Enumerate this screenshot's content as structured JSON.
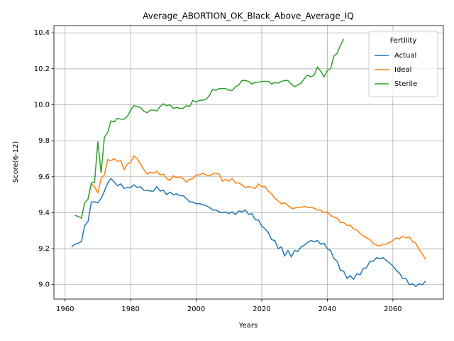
{
  "chart_data": {
    "type": "line",
    "title": "Average_ABORTION_OK_Black_Above_Average_IQ",
    "xlabel": "Years",
    "ylabel": "Score(6-12)",
    "x": [
      1962,
      1963,
      1964,
      1965,
      1966,
      1967,
      1968,
      1969,
      1970,
      1971,
      1972,
      1973,
      1974,
      1975,
      1976,
      1977,
      1978,
      1979,
      1980,
      1981,
      1982,
      1983,
      1984,
      1985,
      1986,
      1987,
      1988,
      1989,
      1990,
      1991,
      1992,
      1993,
      1994,
      1995,
      1996,
      1997,
      1998,
      1999,
      2000,
      2001,
      2002,
      2003,
      2004,
      2005,
      2006,
      2007,
      2008,
      2009,
      2010,
      2011,
      2012,
      2013,
      2014,
      2015,
      2016,
      2017,
      2018,
      2019,
      2020,
      2021,
      2022,
      2023,
      2024,
      2025,
      2026,
      2027,
      2028,
      2029,
      2030,
      2031,
      2032,
      2033,
      2034,
      2035,
      2036,
      2037,
      2038,
      2039,
      2040,
      2041,
      2042,
      2043,
      2044,
      2045,
      2046,
      2047,
      2048,
      2049,
      2050,
      2051,
      2052,
      2053,
      2054,
      2055,
      2056,
      2057,
      2058,
      2059,
      2060,
      2061,
      2062,
      2063,
      2064,
      2065,
      2066,
      2067,
      2068,
      2069,
      2070
    ],
    "series": [
      {
        "name": "Actual",
        "color": "#1f77b4",
        "values": [
          9.21,
          9.225,
          9.23,
          9.24,
          9.33,
          9.35,
          9.46,
          9.46,
          9.455,
          9.48,
          9.52,
          9.565,
          9.59,
          9.57,
          9.55,
          9.56,
          9.535,
          9.54,
          9.54,
          9.555,
          9.54,
          9.545,
          9.525,
          9.525,
          9.52,
          9.52,
          9.545,
          9.52,
          9.525,
          9.5,
          9.515,
          9.5,
          9.505,
          9.495,
          9.495,
          9.48,
          9.46,
          9.46,
          9.45,
          9.45,
          9.445,
          9.44,
          9.43,
          9.415,
          9.415,
          9.405,
          9.4,
          9.405,
          9.395,
          9.405,
          9.39,
          9.41,
          9.405,
          9.415,
          9.39,
          9.395,
          9.36,
          9.36,
          9.325,
          9.31,
          9.29,
          9.25,
          9.245,
          9.2,
          9.21,
          9.16,
          9.19,
          9.155,
          9.19,
          9.185,
          9.21,
          9.22,
          9.235,
          9.245,
          9.24,
          9.245,
          9.225,
          9.23,
          9.2,
          9.19,
          9.145,
          9.13,
          9.08,
          9.075,
          9.035,
          9.05,
          9.03,
          9.06,
          9.055,
          9.09,
          9.095,
          9.13,
          9.13,
          9.15,
          9.145,
          9.15,
          9.135,
          9.12,
          9.105,
          9.08,
          9.065,
          9.035,
          9.035,
          9.0,
          9.005,
          8.99,
          9.005,
          9.0,
          9.02
        ]
      },
      {
        "name": "Ideal",
        "color": "#ff7f0e",
        "values": [
          null,
          null,
          null,
          null,
          null,
          9.48,
          9.56,
          9.545,
          9.51,
          9.59,
          9.61,
          9.695,
          9.69,
          9.7,
          9.685,
          9.69,
          9.64,
          9.67,
          9.68,
          9.715,
          9.7,
          9.67,
          9.64,
          9.615,
          9.625,
          9.62,
          9.63,
          9.61,
          9.615,
          9.59,
          9.58,
          9.605,
          9.595,
          9.6,
          9.59,
          9.57,
          9.585,
          9.59,
          9.61,
          9.61,
          9.62,
          9.61,
          9.605,
          9.615,
          9.62,
          9.615,
          9.575,
          9.585,
          9.575,
          9.59,
          9.565,
          9.565,
          9.555,
          9.54,
          9.545,
          9.54,
          9.535,
          9.56,
          9.545,
          9.545,
          9.52,
          9.505,
          9.48,
          9.465,
          9.45,
          9.455,
          9.44,
          9.425,
          9.425,
          9.43,
          9.43,
          9.435,
          9.43,
          9.43,
          9.425,
          9.415,
          9.415,
          9.4,
          9.405,
          9.385,
          9.375,
          9.37,
          9.345,
          9.345,
          9.33,
          9.33,
          9.31,
          9.305,
          9.285,
          9.27,
          9.26,
          9.25,
          9.23,
          9.22,
          9.215,
          9.225,
          9.225,
          9.235,
          9.245,
          9.26,
          9.255,
          9.27,
          9.26,
          9.265,
          9.24,
          9.23,
          9.195,
          9.17,
          9.14
        ]
      },
      {
        "name": "Sterile",
        "color": "#2ca02c",
        "values": [
          null,
          9.385,
          9.38,
          9.37,
          9.455,
          9.475,
          9.565,
          9.57,
          9.795,
          9.62,
          9.82,
          9.845,
          9.91,
          9.905,
          9.925,
          9.92,
          9.92,
          9.935,
          9.97,
          9.995,
          9.99,
          9.985,
          9.965,
          9.955,
          9.97,
          9.97,
          9.965,
          9.99,
          10.005,
          9.995,
          10.0,
          9.98,
          9.985,
          9.98,
          9.98,
          9.995,
          9.99,
          10.025,
          10.015,
          10.025,
          10.025,
          10.03,
          10.05,
          10.085,
          10.08,
          10.09,
          10.09,
          10.09,
          10.08,
          10.08,
          10.1,
          10.11,
          10.135,
          10.135,
          10.13,
          10.115,
          10.125,
          10.125,
          10.13,
          10.13,
          10.13,
          10.115,
          10.125,
          10.12,
          10.13,
          10.135,
          10.135,
          10.115,
          10.1,
          10.11,
          10.12,
          10.145,
          10.165,
          10.155,
          10.165,
          10.21,
          10.185,
          10.155,
          10.19,
          10.2,
          10.27,
          10.285,
          10.33,
          10.365,
          null,
          null,
          null,
          null,
          null,
          null,
          null,
          null,
          null,
          null,
          null,
          null,
          null,
          null,
          null,
          null,
          null,
          null,
          null,
          null,
          null,
          null,
          null,
          null,
          null
        ]
      }
    ],
    "legend_title": "Fertility",
    "legend_position": "upper right",
    "grid": true,
    "xlim": [
      1956.6,
      2075.4
    ],
    "xticks": [
      1960,
      1980,
      2000,
      2020,
      2040,
      2060
    ],
    "ylim": [
      8.92,
      10.44
    ],
    "yticks": [
      {
        "value": 9.0,
        "label": "9.0"
      },
      9.2,
      9.4,
      9.6,
      9.8,
      {
        "value": 10.0,
        "label": "10.0"
      },
      10.2,
      10.4
    ]
  }
}
